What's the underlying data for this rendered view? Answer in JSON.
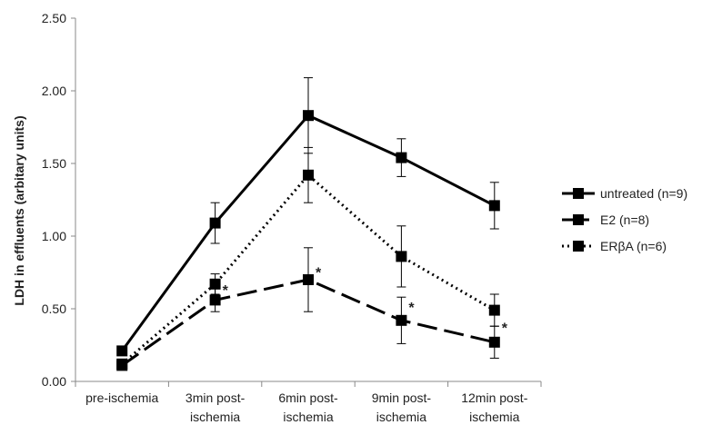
{
  "chart_data": {
    "type": "line",
    "title": "",
    "ylabel": "LDH in effluents (arbitary units)",
    "xlabel": "",
    "ylim": [
      0,
      2.5
    ],
    "yticks": [
      "0.00",
      "0.50",
      "1.00",
      "1.50",
      "2.00",
      "2.50"
    ],
    "ytick_values": [
      0,
      0.5,
      1,
      1.5,
      2,
      2.5
    ],
    "categories": [
      [
        "pre-ischemia"
      ],
      [
        "3min post-",
        "ischemia"
      ],
      [
        "6min post-",
        "ischemia"
      ],
      [
        "9min post-",
        "ischemia"
      ],
      [
        "12min post-",
        "ischemia"
      ]
    ],
    "series": [
      {
        "name": "untreated (n=9)",
        "style": "solid",
        "values": [
          0.21,
          1.09,
          1.83,
          1.54,
          1.21
        ],
        "error": [
          0.02,
          0.14,
          0.26,
          0.13,
          0.16
        ]
      },
      {
        "name": "E2 (n=8)",
        "style": "dashed",
        "values": [
          0.11,
          0.56,
          0.7,
          0.42,
          0.27
        ],
        "error": [
          0.01,
          0.08,
          0.22,
          0.16,
          0.11
        ]
      },
      {
        "name": "ERβA (n=6)",
        "style": "dotted",
        "values": [
          0.12,
          0.67,
          1.42,
          0.86,
          0.49
        ],
        "error": [
          0.01,
          0.07,
          0.19,
          0.21,
          0.11
        ]
      }
    ],
    "annotations": [
      {
        "category_index": 1,
        "value": 0.62,
        "text": "*"
      },
      {
        "category_index": 2,
        "value": 0.74,
        "text": "*"
      },
      {
        "category_index": 3,
        "value": 0.5,
        "text": "*"
      },
      {
        "category_index": 4,
        "value": 0.36,
        "text": "*"
      }
    ],
    "legend_position": "right",
    "grid": false,
    "colors": {
      "line": "#000000",
      "axis": "#888888",
      "text": "#222222"
    }
  }
}
